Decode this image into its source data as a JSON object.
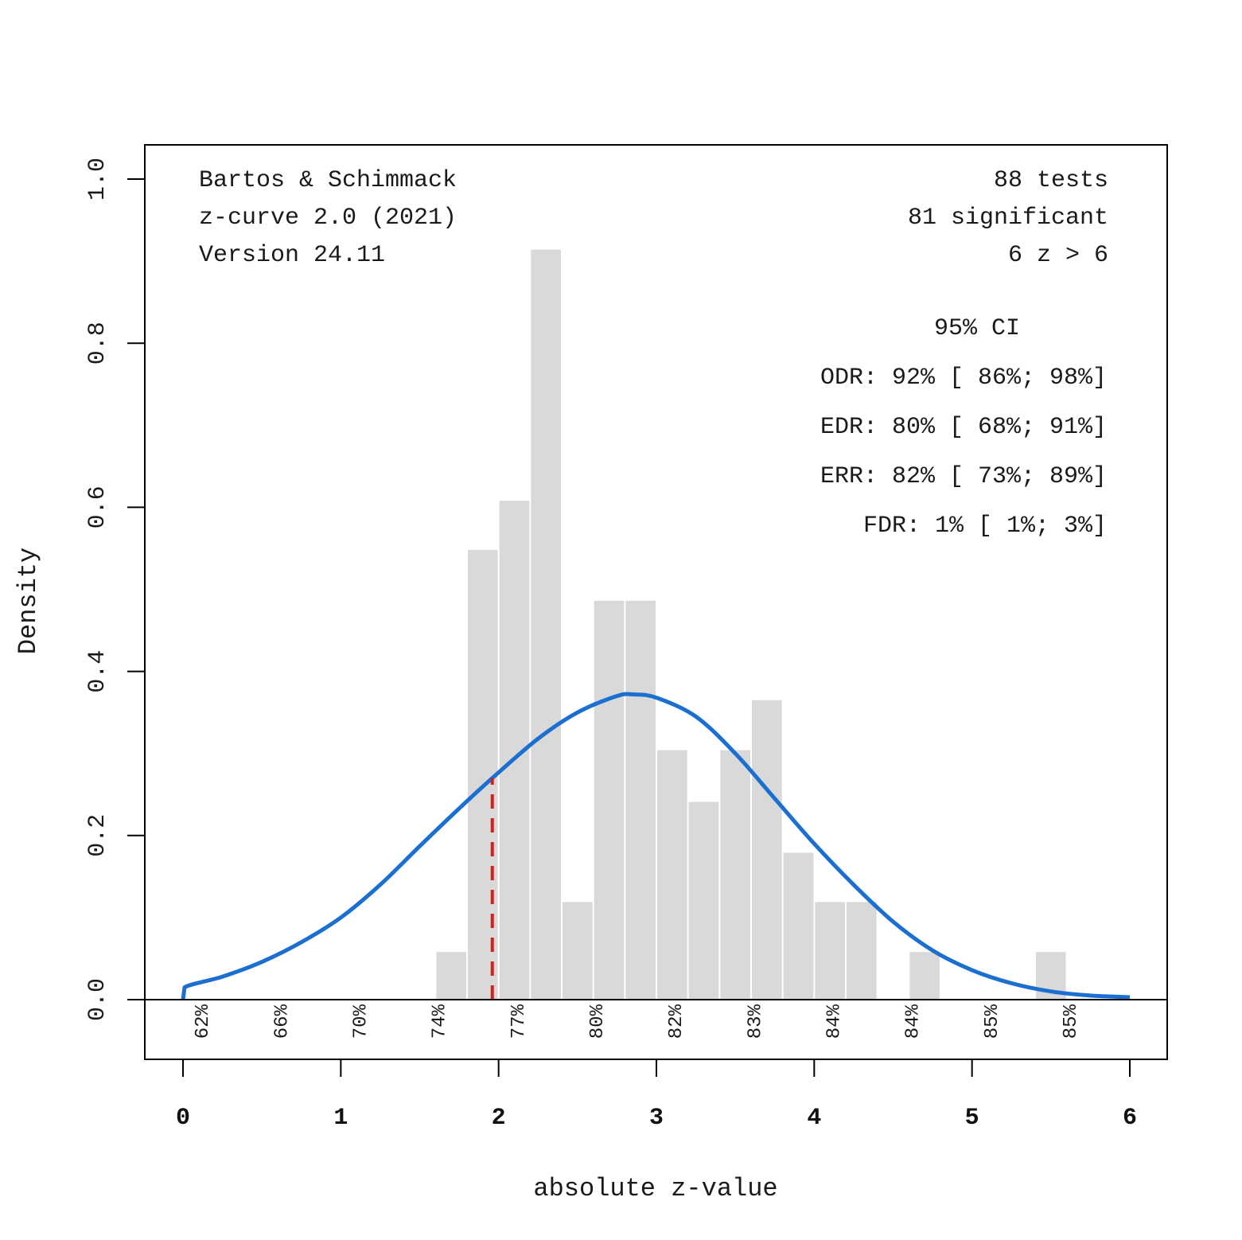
{
  "chart_data": {
    "type": "bar",
    "subtype": "histogram-with-density-curve",
    "xlabel": "absolute z-value",
    "ylabel": "Density",
    "xlim": [
      0,
      6
    ],
    "ylim": [
      0,
      1.0
    ],
    "x_ticks": [
      "0",
      "1",
      "2",
      "3",
      "4",
      "5",
      "6"
    ],
    "y_ticks": [
      "0.0",
      "0.2",
      "0.4",
      "0.6",
      "0.8",
      "1.0"
    ],
    "grid": false,
    "bin_width": 0.2,
    "bins": [
      {
        "x0": 1.6,
        "x1": 1.8,
        "density": 0.058
      },
      {
        "x0": 1.8,
        "x1": 2.0,
        "density": 0.548
      },
      {
        "x0": 2.0,
        "x1": 2.2,
        "density": 0.608
      },
      {
        "x0": 2.2,
        "x1": 2.4,
        "density": 0.914
      },
      {
        "x0": 2.4,
        "x1": 2.6,
        "density": 0.119
      },
      {
        "x0": 2.6,
        "x1": 2.8,
        "density": 0.486
      },
      {
        "x0": 2.8,
        "x1": 3.0,
        "density": 0.486
      },
      {
        "x0": 3.0,
        "x1": 3.2,
        "density": 0.304
      },
      {
        "x0": 3.2,
        "x1": 3.4,
        "density": 0.241
      },
      {
        "x0": 3.4,
        "x1": 3.6,
        "density": 0.304
      },
      {
        "x0": 3.6,
        "x1": 3.8,
        "density": 0.365
      },
      {
        "x0": 3.8,
        "x1": 4.0,
        "density": 0.179
      },
      {
        "x0": 4.0,
        "x1": 4.2,
        "density": 0.119
      },
      {
        "x0": 4.2,
        "x1": 4.4,
        "density": 0.119
      },
      {
        "x0": 4.6,
        "x1": 4.8,
        "density": 0.058
      },
      {
        "x0": 5.4,
        "x1": 5.6,
        "density": 0.058
      }
    ],
    "density_curve": {
      "name": "z-curve fit",
      "x": [
        0,
        0.01,
        0.25,
        0.5,
        0.75,
        1.0,
        1.25,
        1.5,
        1.75,
        1.96,
        2.25,
        2.5,
        2.75,
        2.85,
        3.0,
        3.25,
        3.5,
        3.75,
        4.0,
        4.25,
        4.5,
        4.75,
        5.0,
        5.25,
        5.5,
        5.75,
        6.0
      ],
      "y": [
        0.0,
        0.015,
        0.028,
        0.046,
        0.07,
        0.1,
        0.14,
        0.187,
        0.233,
        0.27,
        0.318,
        0.35,
        0.37,
        0.372,
        0.368,
        0.345,
        0.3,
        0.245,
        0.19,
        0.14,
        0.095,
        0.06,
        0.036,
        0.02,
        0.01,
        0.005,
        0.003
      ]
    },
    "significance_line": {
      "x": 1.96,
      "style": "dashed"
    },
    "power_labels": [
      "62%",
      "66%",
      "70%",
      "74%",
      "77%",
      "80%",
      "82%",
      "83%",
      "84%",
      "84%",
      "85%",
      "85%"
    ],
    "power_label_positions": [
      0.125,
      0.625,
      1.125,
      1.625,
      2.125,
      2.625,
      3.125,
      3.625,
      4.125,
      4.625,
      5.125,
      5.625
    ],
    "colors": {
      "bars": "#d9d9d9",
      "curve": "#1a6fd1",
      "significance": "#d42020",
      "axis": "#000000"
    }
  },
  "annotations": {
    "left": [
      "Bartos & Schimmack",
      "z-curve 2.0 (2021)",
      "Version 24.11"
    ],
    "right": [
      "88 tests",
      "81 significant",
      "6 z > 6"
    ],
    "ci_header": "95% CI",
    "ci_rows": [
      "ODR: 92% [ 86%; 98%]",
      "EDR: 80% [ 68%; 91%]",
      "ERR: 82% [ 73%; 89%]",
      "FDR: 1% [ 1%; 3%]"
    ]
  }
}
